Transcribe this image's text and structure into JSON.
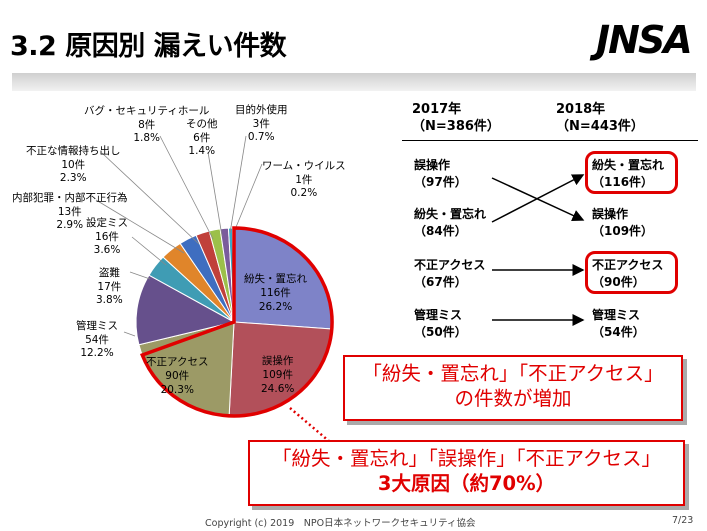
{
  "header": {
    "title": "3.2 原因別 漏えい件数",
    "logo": "JNSA"
  },
  "chart_data": {
    "type": "pie",
    "title": "",
    "slices": [
      {
        "name": "紛失・置忘れ",
        "count": "116件",
        "percent": "26.2%",
        "value": 116,
        "color": "#7e83c8"
      },
      {
        "name": "誤操作",
        "count": "109件",
        "percent": "24.6%",
        "value": 109,
        "color": "#b2505a"
      },
      {
        "name": "不正アクセス",
        "count": "90件",
        "percent": "20.3%",
        "value": 90,
        "color": "#9c9a66"
      },
      {
        "name": "管理ミス",
        "count": "54件",
        "percent": "12.2%",
        "value": 54,
        "color": "#66508c"
      },
      {
        "name": "盗難",
        "count": "17件",
        "percent": "3.8%",
        "value": 17,
        "color": "#3f9cb4"
      },
      {
        "name": "設定ミス",
        "count": "16件",
        "percent": "3.6%",
        "value": 16,
        "color": "#e0852a"
      },
      {
        "name": "内部犯罪・内部不正行為",
        "count": "13件",
        "percent": "2.9%",
        "value": 13,
        "color": "#3f6ec0"
      },
      {
        "name": "不正な情報持ち出し",
        "count": "10件",
        "percent": "2.3%",
        "value": 10,
        "color": "#c0403a"
      },
      {
        "name": "バグ・セキュリティホール",
        "count": "8件",
        "percent": "1.8%",
        "value": 8,
        "color": "#9cc04a"
      },
      {
        "name": "その他",
        "count": "6件",
        "percent": "1.4%",
        "value": 6,
        "color": "#7a5c9c"
      },
      {
        "name": "目的外使用",
        "count": "3件",
        "percent": "0.7%",
        "value": 3,
        "color": "#3aa8c4"
      },
      {
        "name": "ワーム・ウイルス",
        "count": "1件",
        "percent": "0.2%",
        "value": 1,
        "color": "#e8a050"
      }
    ]
  },
  "comparison": {
    "year_2017": {
      "year": "2017年",
      "n": "（N=386件）"
    },
    "year_2018": {
      "year": "2018年",
      "n": "（N=443件）"
    },
    "rows_2017": [
      {
        "name": "誤操作",
        "count": "（97件）"
      },
      {
        "name": "紛失・置忘れ",
        "count": "（84件）"
      },
      {
        "name": "不正アクセス",
        "count": "（67件）"
      },
      {
        "name": "管理ミス",
        "count": "（50件）"
      }
    ],
    "rows_2018": [
      {
        "name": "紛失・置忘れ",
        "count": "（116件）"
      },
      {
        "name": "誤操作",
        "count": "（109件）"
      },
      {
        "name": "不正アクセス",
        "count": "（90件）"
      },
      {
        "name": "管理ミス",
        "count": "（54件）"
      }
    ]
  },
  "callouts": {
    "increase_line1": "「紛失・置忘れ」「不正アクセス」",
    "increase_line2": "の件数が増加",
    "top3_line1": "「紛失・置忘れ」「誤操作」「不正アクセス」",
    "top3_line2": "3大原因（約70%）"
  },
  "footer": {
    "copyright": "Copyright (c) 2019　NPO日本ネットワークセキュリティ協会",
    "page": "7/23"
  },
  "colors": {
    "accent_red": "#e00000"
  }
}
